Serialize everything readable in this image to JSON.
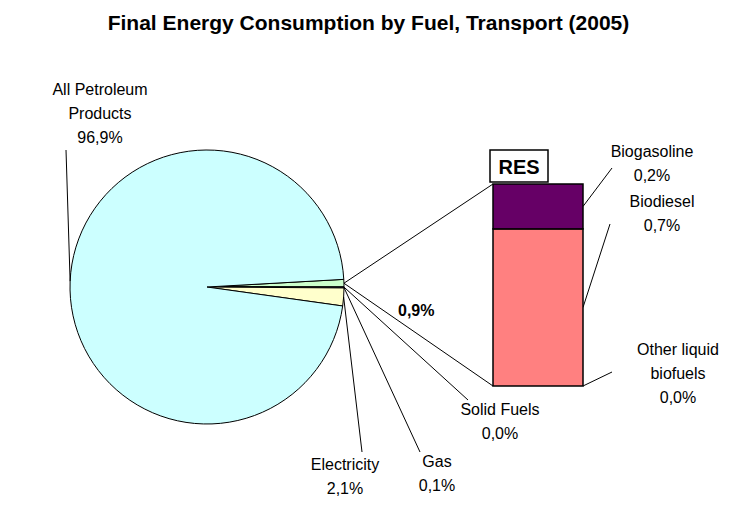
{
  "chart_data": [
    {
      "type": "pie",
      "title": "Final Energy Consumption by Fuel, Transport (2005)",
      "categories": [
        null,
        "Solid Fuels",
        "Gas",
        "Electricity",
        "All Petroleum Products"
      ],
      "values": [
        0.9,
        0.0,
        0.1,
        2.1,
        96.9
      ],
      "value_labels": [
        "0,9%",
        "0,0%",
        "0,1%",
        "2,1%",
        "96,9%"
      ],
      "colors": [
        "#ccffcc",
        "#000000",
        "#9999ff",
        "#ffffcc",
        "#ccffff"
      ],
      "data_labels": true
    },
    {
      "type": "bar",
      "title": "RES",
      "stacked": true,
      "tick_labels": false,
      "data_labels": true,
      "categories": [
        null
      ],
      "series": [
        {
          "name": "Other liquid biofuels",
          "color": "#000000",
          "values": [
            0.0
          ],
          "value_labels": [
            "0,0%"
          ]
        },
        {
          "name": "Biodiesel",
          "color": "#ff8080",
          "values": [
            0.7
          ],
          "value_labels": [
            "0,7%"
          ]
        },
        {
          "name": "Biogasoline",
          "color": "#660066",
          "values": [
            0.2
          ],
          "value_labels": [
            "0,2%"
          ]
        }
      ]
    }
  ]
}
